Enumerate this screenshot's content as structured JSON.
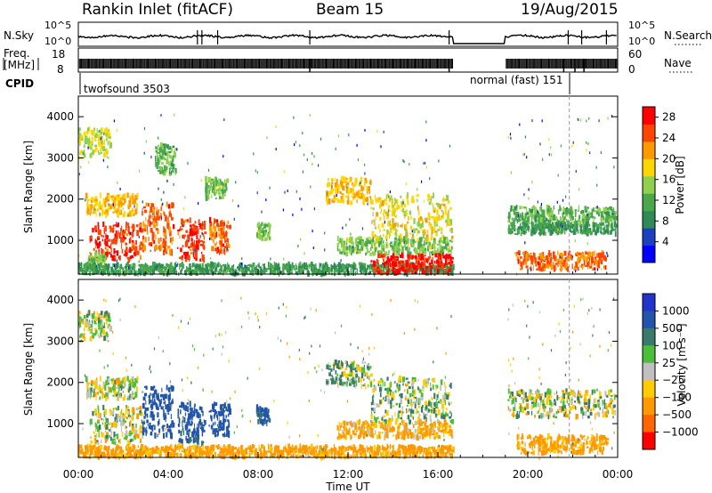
{
  "header": {
    "station": "Rankin Inlet (fitACF)",
    "beam": "Beam 15",
    "date": "19/Aug/2015"
  },
  "noise_panel": {
    "left_label": "N.Sky",
    "right_label": "N.Search",
    "left_ticks": [
      "10^5",
      "10^0"
    ],
    "right_ticks": [
      "10^5",
      "10^0"
    ]
  },
  "freq_panel": {
    "left_label_line1": "Freq.",
    "left_label_line2": "[MHz]",
    "right_label": "Nave",
    "left_ticks": [
      "18",
      "8"
    ],
    "right_ticks": [
      "60",
      "0"
    ]
  },
  "cpid": {
    "label": "CPID",
    "segments": [
      {
        "text": "twofsound 3503",
        "start_hour": 0.0,
        "end_hour": 16.7
      },
      {
        "text": "normal (fast) 151",
        "start_hour": 19.0,
        "end_hour": 24.0
      }
    ]
  },
  "colors": {
    "power": [
      "#0000ff",
      "#1c3fbf",
      "#2e8b57",
      "#4aa84a",
      "#8fd14f",
      "#ffd700",
      "#ff9900",
      "#ff4500",
      "#ff0000"
    ],
    "velocity": [
      "#2233cc",
      "#2255aa",
      "#3a7a6a",
      "#4cbf3a",
      "#c0c0c0",
      "#ffcc00",
      "#ff9900",
      "#ff6600",
      "#ff0000"
    ]
  },
  "chart_data": [
    {
      "type": "heatmap",
      "name": "power",
      "ylabel": "Slant Range [km]",
      "ylim": [
        180,
        4500
      ],
      "y_ticks": [
        1000,
        2000,
        3000,
        4000
      ],
      "xlim": [
        0,
        24
      ],
      "colorbar": {
        "label": "Power [dB]",
        "ticks": [
          "4",
          "8",
          "12",
          "16",
          "20",
          "24",
          "28"
        ],
        "range": [
          0,
          30
        ]
      },
      "patches": [
        {
          "x0": 0.0,
          "x1": 1.4,
          "y0": 3000,
          "y1": 3700,
          "value": 16
        },
        {
          "x0": 0.3,
          "x1": 2.6,
          "y0": 1600,
          "y1": 2100,
          "value": 20
        },
        {
          "x0": 0.5,
          "x1": 2.8,
          "y0": 500,
          "y1": 1400,
          "value": 26
        },
        {
          "x0": 0.4,
          "x1": 1.2,
          "y0": 250,
          "y1": 700,
          "value": 14
        },
        {
          "x0": 2.8,
          "x1": 4.2,
          "y0": 700,
          "y1": 1900,
          "value": 24
        },
        {
          "x0": 4.4,
          "x1": 5.6,
          "y0": 500,
          "y1": 1500,
          "value": 26
        },
        {
          "x0": 5.8,
          "x1": 6.7,
          "y0": 700,
          "y1": 1500,
          "value": 24
        },
        {
          "x0": 3.4,
          "x1": 4.3,
          "y0": 2600,
          "y1": 3300,
          "value": 12
        },
        {
          "x0": 5.6,
          "x1": 6.6,
          "y0": 2000,
          "y1": 2500,
          "value": 14
        },
        {
          "x0": 7.9,
          "x1": 8.5,
          "y0": 1000,
          "y1": 1400,
          "value": 14
        },
        {
          "x0": 0.0,
          "x1": 16.7,
          "y0": 180,
          "y1": 420,
          "value": 10
        },
        {
          "x0": 11.0,
          "x1": 13.0,
          "y0": 1900,
          "y1": 2500,
          "value": 20
        },
        {
          "x0": 13.0,
          "x1": 16.6,
          "y0": 1000,
          "y1": 2100,
          "value": 18
        },
        {
          "x0": 11.5,
          "x1": 16.6,
          "y0": 650,
          "y1": 1050,
          "value": 14
        },
        {
          "x0": 13.0,
          "x1": 16.6,
          "y0": 200,
          "y1": 650,
          "value": 28
        },
        {
          "x0": 19.1,
          "x1": 23.9,
          "y0": 1400,
          "y1": 1800,
          "value": 12
        },
        {
          "x0": 19.1,
          "x1": 23.9,
          "y0": 1150,
          "y1": 1400,
          "value": 10
        },
        {
          "x0": 19.4,
          "x1": 23.5,
          "y0": 280,
          "y1": 700,
          "value": 24
        }
      ]
    },
    {
      "type": "heatmap",
      "name": "velocity",
      "ylabel": "Slant Range [km]",
      "xlabel": "Time UT",
      "ylim": [
        180,
        4500
      ],
      "y_ticks": [
        1000,
        2000,
        3000,
        4000
      ],
      "xlim": [
        0,
        24
      ],
      "x_ticks": [
        "00:00",
        "04:00",
        "08:00",
        "12:00",
        "16:00",
        "20:00",
        "00:00"
      ],
      "colorbar": {
        "label": "Velocity [m s⁻¹]",
        "ticks": [
          "1000",
          "500",
          "100",
          "25",
          "−25",
          "−100",
          "−500",
          "−1000"
        ]
      },
      "patches": [
        {
          "x0": 0.0,
          "x1": 1.4,
          "y0": 3000,
          "y1": 3700,
          "value": 0
        },
        {
          "x0": 0.3,
          "x1": 2.6,
          "y0": 1600,
          "y1": 2100,
          "value": 0
        },
        {
          "x0": 0.5,
          "x1": 2.8,
          "y0": 500,
          "y1": 1400,
          "value": 0
        },
        {
          "x0": 2.8,
          "x1": 4.2,
          "y0": 700,
          "y1": 1900,
          "value": 700
        },
        {
          "x0": 4.4,
          "x1": 5.6,
          "y0": 500,
          "y1": 1500,
          "value": 600
        },
        {
          "x0": 5.8,
          "x1": 6.7,
          "y0": 700,
          "y1": 1500,
          "value": 700
        },
        {
          "x0": 7.9,
          "x1": 8.5,
          "y0": 1000,
          "y1": 1400,
          "value": 600
        },
        {
          "x0": 0.0,
          "x1": 16.7,
          "y0": 180,
          "y1": 450,
          "value": -200
        },
        {
          "x0": 11.0,
          "x1": 13.0,
          "y0": 1900,
          "y1": 2500,
          "value": 80
        },
        {
          "x0": 13.0,
          "x1": 16.6,
          "y0": 1000,
          "y1": 2100,
          "value": 60
        },
        {
          "x0": 11.5,
          "x1": 16.6,
          "y0": 650,
          "y1": 1050,
          "value": -150
        },
        {
          "x0": 19.1,
          "x1": 23.9,
          "y0": 1150,
          "y1": 1800,
          "value": 10
        },
        {
          "x0": 19.4,
          "x1": 23.5,
          "y0": 280,
          "y1": 700,
          "value": -200
        }
      ]
    }
  ]
}
